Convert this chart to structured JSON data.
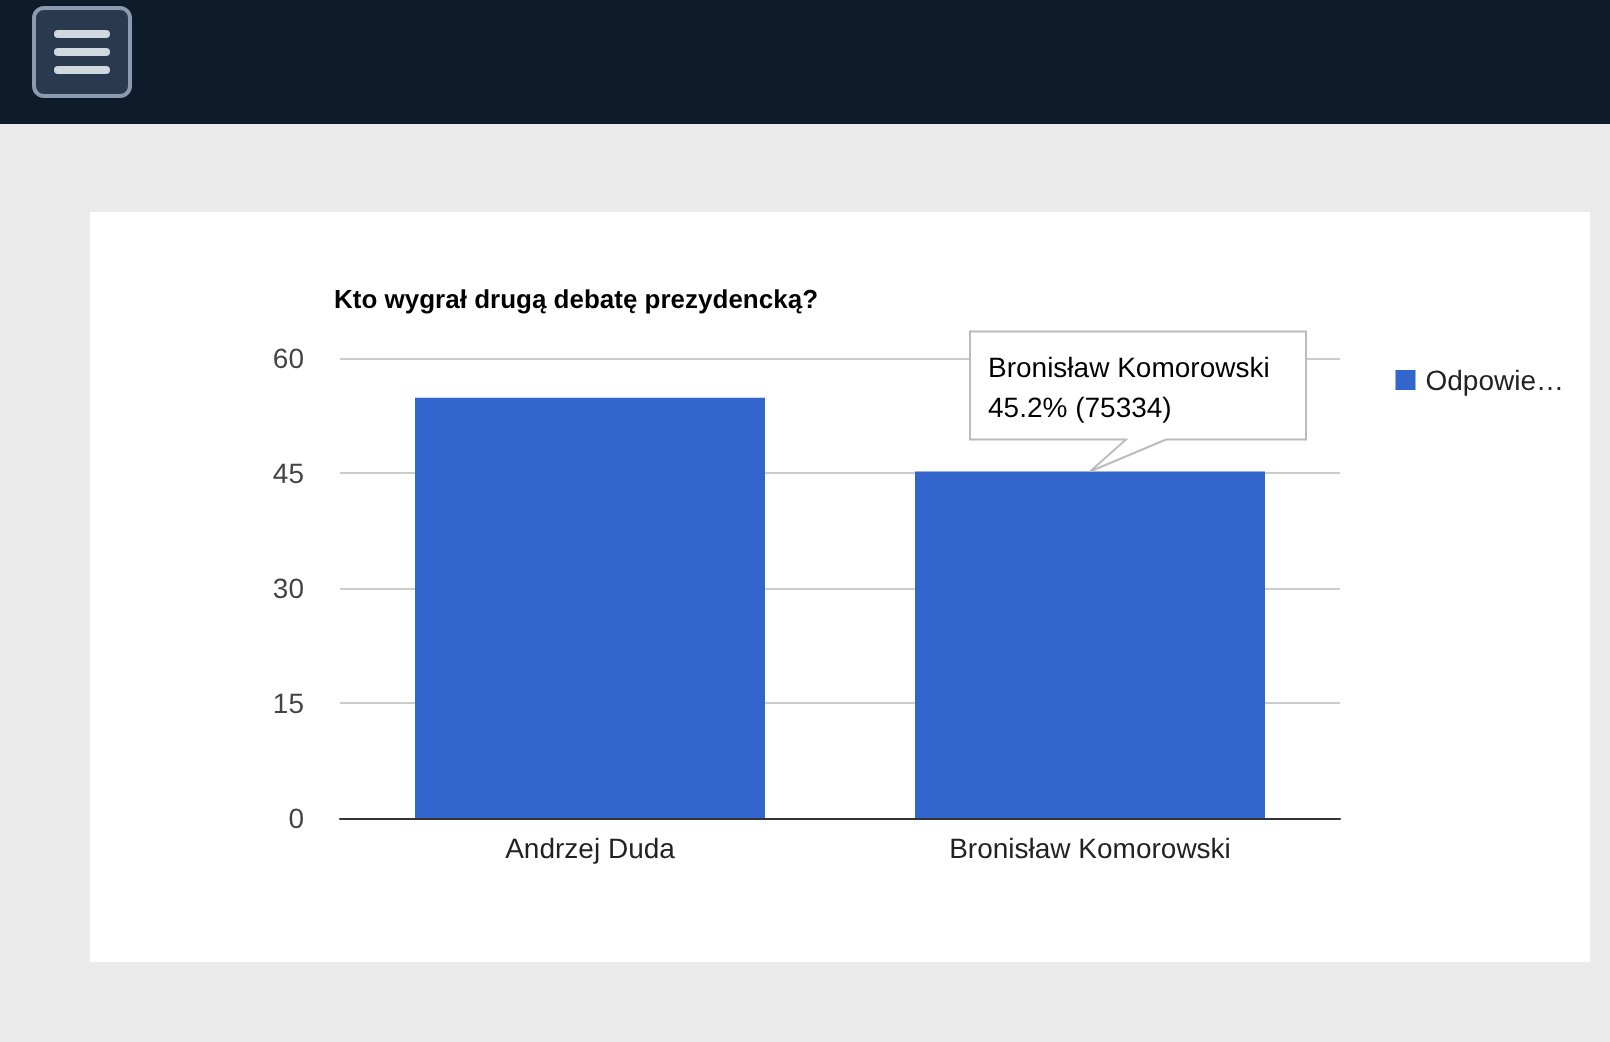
{
  "chart_data": {
    "type": "bar",
    "title": "Kto wygrał drugą debatę prezydencką?",
    "categories": [
      "Andrzej Duda",
      "Bronisław Komorowski"
    ],
    "series": [
      {
        "name": "Odpowie…",
        "color": "#3366cc",
        "values": [
          54.8,
          45.2
        ]
      }
    ],
    "ylim": [
      0,
      60
    ],
    "yticks": [
      0,
      15,
      30,
      45,
      60
    ],
    "grid": "y",
    "legend": "top right",
    "annotations": [
      {
        "text": "Bronisław Komorowski\n45.2% (75334)",
        "x": "Bronisław Komorowski",
        "y": 45.2
      }
    ]
  }
}
